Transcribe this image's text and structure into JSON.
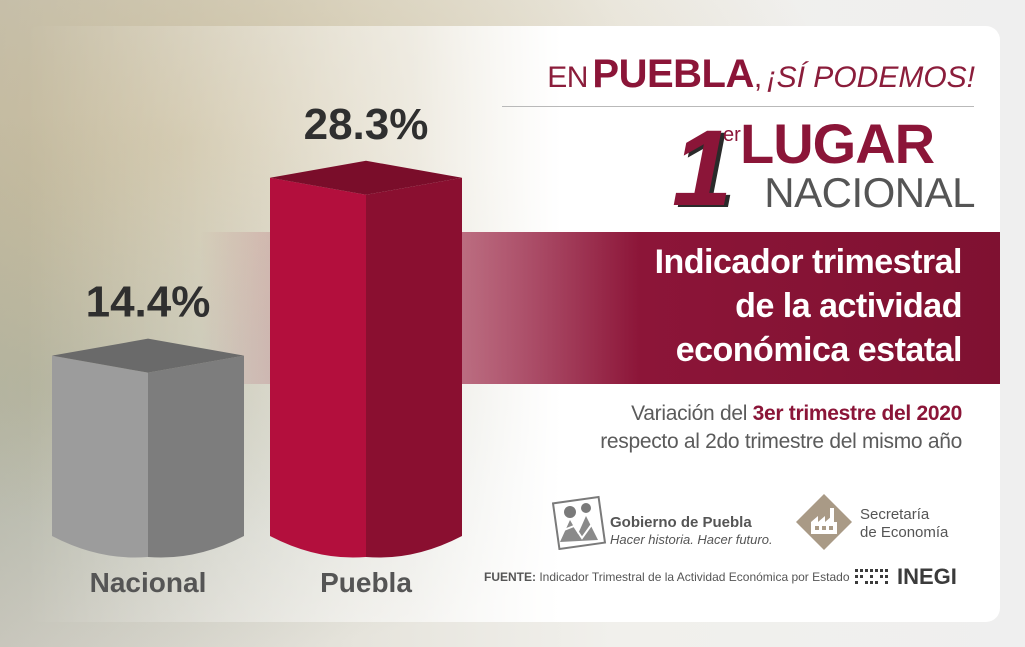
{
  "header": {
    "pre": "EN",
    "state": "PUEBLA",
    "sep": ",",
    "slogan": "¡SÍ PODEMOS!"
  },
  "rank": {
    "number": "1",
    "suffix": "er",
    "line1": "LUGAR",
    "line2": "NACIONAL"
  },
  "indicator": {
    "line1": "Indicador trimestral",
    "line2": "de la actividad",
    "line3": "económica estatal"
  },
  "variation": {
    "pre": "Variación del",
    "highlight": "3er trimestre del 2020",
    "line2": "respecto al 2do trimestre del mismo año"
  },
  "logos": {
    "gobierno_name": "Gobierno de Puebla",
    "gobierno_slogan": "Hacer historia. Hacer futuro.",
    "secretaria_line1": "Secretaría",
    "secretaria_line2": "de Economía",
    "inegi": "INEGI"
  },
  "source": {
    "label": "FUENTE:",
    "text": "Indicador Trimestral de la Actividad Económica por Estado"
  },
  "colors": {
    "accent": "#8b1538",
    "gray_bar": "#8a8a8a",
    "text_gray": "#555555"
  },
  "chart_data": {
    "type": "bar",
    "categories": [
      "Nacional",
      "Puebla"
    ],
    "values": [
      14.4,
      28.3
    ],
    "value_labels": [
      "14.4%",
      "28.3%"
    ],
    "ylim": [
      0,
      30
    ],
    "grid": false,
    "colors": [
      "#8a8a8a",
      "#b00f3a"
    ]
  }
}
